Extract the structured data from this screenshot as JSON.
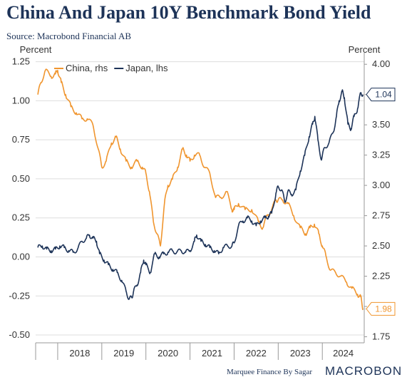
{
  "header": {
    "title": "China And Japan 10Y Benchmark Bond Yield",
    "source": "Source: Macrobond Financial AB"
  },
  "footer": {
    "credit": "Marquee Finance By Sagar",
    "brand": "MACROBOND"
  },
  "colors": {
    "china": "#f0952e",
    "japan": "#1d3358",
    "grid": "#dddddd",
    "axis_text": "#333333"
  },
  "chart_data": {
    "type": "line",
    "left_axis": {
      "label": "Percent",
      "range": [
        -0.55,
        1.28
      ],
      "ticks": [
        "1.25",
        "1.00",
        "0.75",
        "0.50",
        "0.25",
        "0.00",
        "-0.25",
        "-0.50"
      ]
    },
    "right_axis": {
      "label": "Percent",
      "range": [
        1.7,
        4.06
      ],
      "ticks": [
        "4.00",
        "3.75",
        "3.50",
        "3.25",
        "3.00",
        "2.75",
        "2.50",
        "2.25",
        "2.00",
        "1.75"
      ]
    },
    "x_axis": {
      "range": [
        2017.5,
        2024.95
      ],
      "ticks": [
        "2018",
        "2019",
        "2020",
        "2021",
        "2022",
        "2023",
        "2024"
      ]
    },
    "grid": true,
    "legend_position": "top-left",
    "series": [
      {
        "name": "China, rhs",
        "axis": "right",
        "color": "#f0952e",
        "last_label": "1.98",
        "points": [
          [
            2017.55,
            3.75
          ],
          [
            2017.62,
            3.85
          ],
          [
            2017.72,
            3.95
          ],
          [
            2017.85,
            3.9
          ],
          [
            2017.95,
            3.92
          ],
          [
            2018.0,
            3.95
          ],
          [
            2018.08,
            3.85
          ],
          [
            2018.18,
            3.75
          ],
          [
            2018.3,
            3.65
          ],
          [
            2018.42,
            3.6
          ],
          [
            2018.55,
            3.55
          ],
          [
            2018.67,
            3.55
          ],
          [
            2018.8,
            3.5
          ],
          [
            2018.92,
            3.3
          ],
          [
            2019.0,
            3.15
          ],
          [
            2019.1,
            3.2
          ],
          [
            2019.22,
            3.35
          ],
          [
            2019.32,
            3.4
          ],
          [
            2019.42,
            3.3
          ],
          [
            2019.55,
            3.2
          ],
          [
            2019.67,
            3.15
          ],
          [
            2019.8,
            3.2
          ],
          [
            2019.92,
            3.15
          ],
          [
            2020.0,
            3.1
          ],
          [
            2020.08,
            2.95
          ],
          [
            2020.17,
            2.7
          ],
          [
            2020.25,
            2.6
          ],
          [
            2020.33,
            2.5
          ],
          [
            2020.42,
            2.85
          ],
          [
            2020.5,
            3.0
          ],
          [
            2020.6,
            3.05
          ],
          [
            2020.72,
            3.15
          ],
          [
            2020.83,
            3.3
          ],
          [
            2020.92,
            3.25
          ],
          [
            2021.0,
            3.2
          ],
          [
            2021.1,
            3.25
          ],
          [
            2021.22,
            3.25
          ],
          [
            2021.33,
            3.15
          ],
          [
            2021.45,
            3.1
          ],
          [
            2021.58,
            2.9
          ],
          [
            2021.7,
            2.9
          ],
          [
            2021.83,
            2.95
          ],
          [
            2021.95,
            2.8
          ],
          [
            2022.0,
            2.8
          ],
          [
            2022.1,
            2.85
          ],
          [
            2022.25,
            2.8
          ],
          [
            2022.4,
            2.8
          ],
          [
            2022.55,
            2.7
          ],
          [
            2022.65,
            2.65
          ],
          [
            2022.75,
            2.75
          ],
          [
            2022.85,
            2.8
          ],
          [
            2022.95,
            2.88
          ],
          [
            2023.0,
            2.88
          ],
          [
            2023.1,
            2.88
          ],
          [
            2023.22,
            2.85
          ],
          [
            2023.35,
            2.75
          ],
          [
            2023.5,
            2.65
          ],
          [
            2023.62,
            2.6
          ],
          [
            2023.72,
            2.65
          ],
          [
            2023.82,
            2.68
          ],
          [
            2023.92,
            2.6
          ],
          [
            2024.0,
            2.5
          ],
          [
            2024.08,
            2.42
          ],
          [
            2024.18,
            2.3
          ],
          [
            2024.3,
            2.28
          ],
          [
            2024.42,
            2.25
          ],
          [
            2024.55,
            2.2
          ],
          [
            2024.67,
            2.15
          ],
          [
            2024.8,
            2.1
          ],
          [
            2024.87,
            2.08
          ],
          [
            2024.92,
            1.98
          ]
        ]
      },
      {
        "name": "Japan, lhs",
        "axis": "left",
        "color": "#1d3358",
        "last_label": "1.04",
        "points": [
          [
            2017.55,
            0.06
          ],
          [
            2017.65,
            0.07
          ],
          [
            2017.75,
            0.05
          ],
          [
            2017.85,
            0.04
          ],
          [
            2017.95,
            0.05
          ],
          [
            2018.05,
            0.07
          ],
          [
            2018.15,
            0.06
          ],
          [
            2018.25,
            0.04
          ],
          [
            2018.35,
            0.03
          ],
          [
            2018.45,
            0.05
          ],
          [
            2018.55,
            0.1
          ],
          [
            2018.65,
            0.12
          ],
          [
            2018.72,
            0.14
          ],
          [
            2018.8,
            0.12
          ],
          [
            2018.88,
            0.1
          ],
          [
            2018.95,
            0.02
          ],
          [
            2019.05,
            -0.02
          ],
          [
            2019.15,
            -0.05
          ],
          [
            2019.25,
            -0.08
          ],
          [
            2019.35,
            -0.1
          ],
          [
            2019.45,
            -0.15
          ],
          [
            2019.55,
            -0.22
          ],
          [
            2019.62,
            -0.27
          ],
          [
            2019.68,
            -0.26
          ],
          [
            2019.72,
            -0.22
          ],
          [
            2019.8,
            -0.18
          ],
          [
            2019.88,
            -0.1
          ],
          [
            2019.95,
            -0.02
          ],
          [
            2020.0,
            -0.05
          ],
          [
            2020.1,
            -0.1
          ],
          [
            2020.2,
            0.02
          ],
          [
            2020.3,
            0.0
          ],
          [
            2020.4,
            0.02
          ],
          [
            2020.5,
            0.03
          ],
          [
            2020.6,
            0.04
          ],
          [
            2020.7,
            0.03
          ],
          [
            2020.8,
            0.04
          ],
          [
            2020.9,
            0.03
          ],
          [
            2021.0,
            0.04
          ],
          [
            2021.1,
            0.1
          ],
          [
            2021.15,
            0.14
          ],
          [
            2021.25,
            0.1
          ],
          [
            2021.35,
            0.08
          ],
          [
            2021.45,
            0.06
          ],
          [
            2021.55,
            0.04
          ],
          [
            2021.65,
            0.02
          ],
          [
            2021.75,
            0.06
          ],
          [
            2021.85,
            0.07
          ],
          [
            2021.95,
            0.07
          ],
          [
            2022.0,
            0.09
          ],
          [
            2022.1,
            0.2
          ],
          [
            2022.2,
            0.23
          ],
          [
            2022.3,
            0.25
          ],
          [
            2022.4,
            0.23
          ],
          [
            2022.5,
            0.2
          ],
          [
            2022.6,
            0.23
          ],
          [
            2022.7,
            0.25
          ],
          [
            2022.78,
            0.26
          ],
          [
            2022.85,
            0.28
          ],
          [
            2022.95,
            0.41
          ],
          [
            2023.0,
            0.45
          ],
          [
            2023.08,
            0.43
          ],
          [
            2023.15,
            0.35
          ],
          [
            2023.22,
            0.42
          ],
          [
            2023.3,
            0.4
          ],
          [
            2023.4,
            0.43
          ],
          [
            2023.5,
            0.55
          ],
          [
            2023.6,
            0.65
          ],
          [
            2023.7,
            0.77
          ],
          [
            2023.78,
            0.85
          ],
          [
            2023.83,
            0.9
          ],
          [
            2023.9,
            0.75
          ],
          [
            2023.98,
            0.62
          ],
          [
            2024.05,
            0.7
          ],
          [
            2024.15,
            0.73
          ],
          [
            2024.25,
            0.8
          ],
          [
            2024.32,
            0.9
          ],
          [
            2024.38,
            1.0
          ],
          [
            2024.45,
            1.06
          ],
          [
            2024.5,
            1.02
          ],
          [
            2024.58,
            0.85
          ],
          [
            2024.65,
            0.82
          ],
          [
            2024.72,
            0.9
          ],
          [
            2024.8,
            0.95
          ],
          [
            2024.87,
            1.05
          ],
          [
            2024.92,
            1.04
          ]
        ]
      }
    ]
  }
}
